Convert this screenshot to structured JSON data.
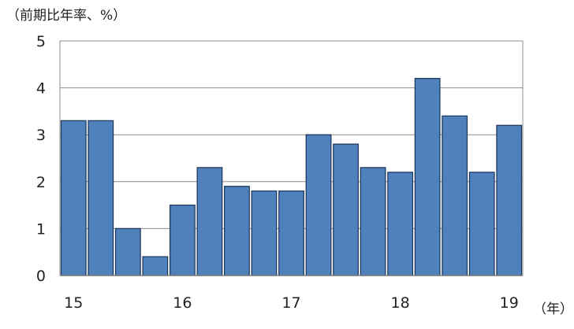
{
  "chart_data": {
    "type": "bar",
    "ylabel": "（前期比年率、%）",
    "xlabel": "（年）",
    "ylim": [
      0,
      5
    ],
    "yticks": [
      0,
      1,
      2,
      3,
      4,
      5
    ],
    "xtick_labels": [
      "15",
      "16",
      "17",
      "18",
      "19"
    ],
    "values": [
      3.3,
      3.3,
      1.0,
      0.4,
      1.5,
      2.3,
      1.9,
      1.8,
      1.8,
      3.0,
      2.8,
      2.3,
      2.2,
      4.2,
      3.4,
      2.2,
      3.2
    ],
    "grid": true,
    "legend": "none",
    "bar_color": "#4f81bd",
    "bar_edge_color": "#1f3a5f"
  }
}
